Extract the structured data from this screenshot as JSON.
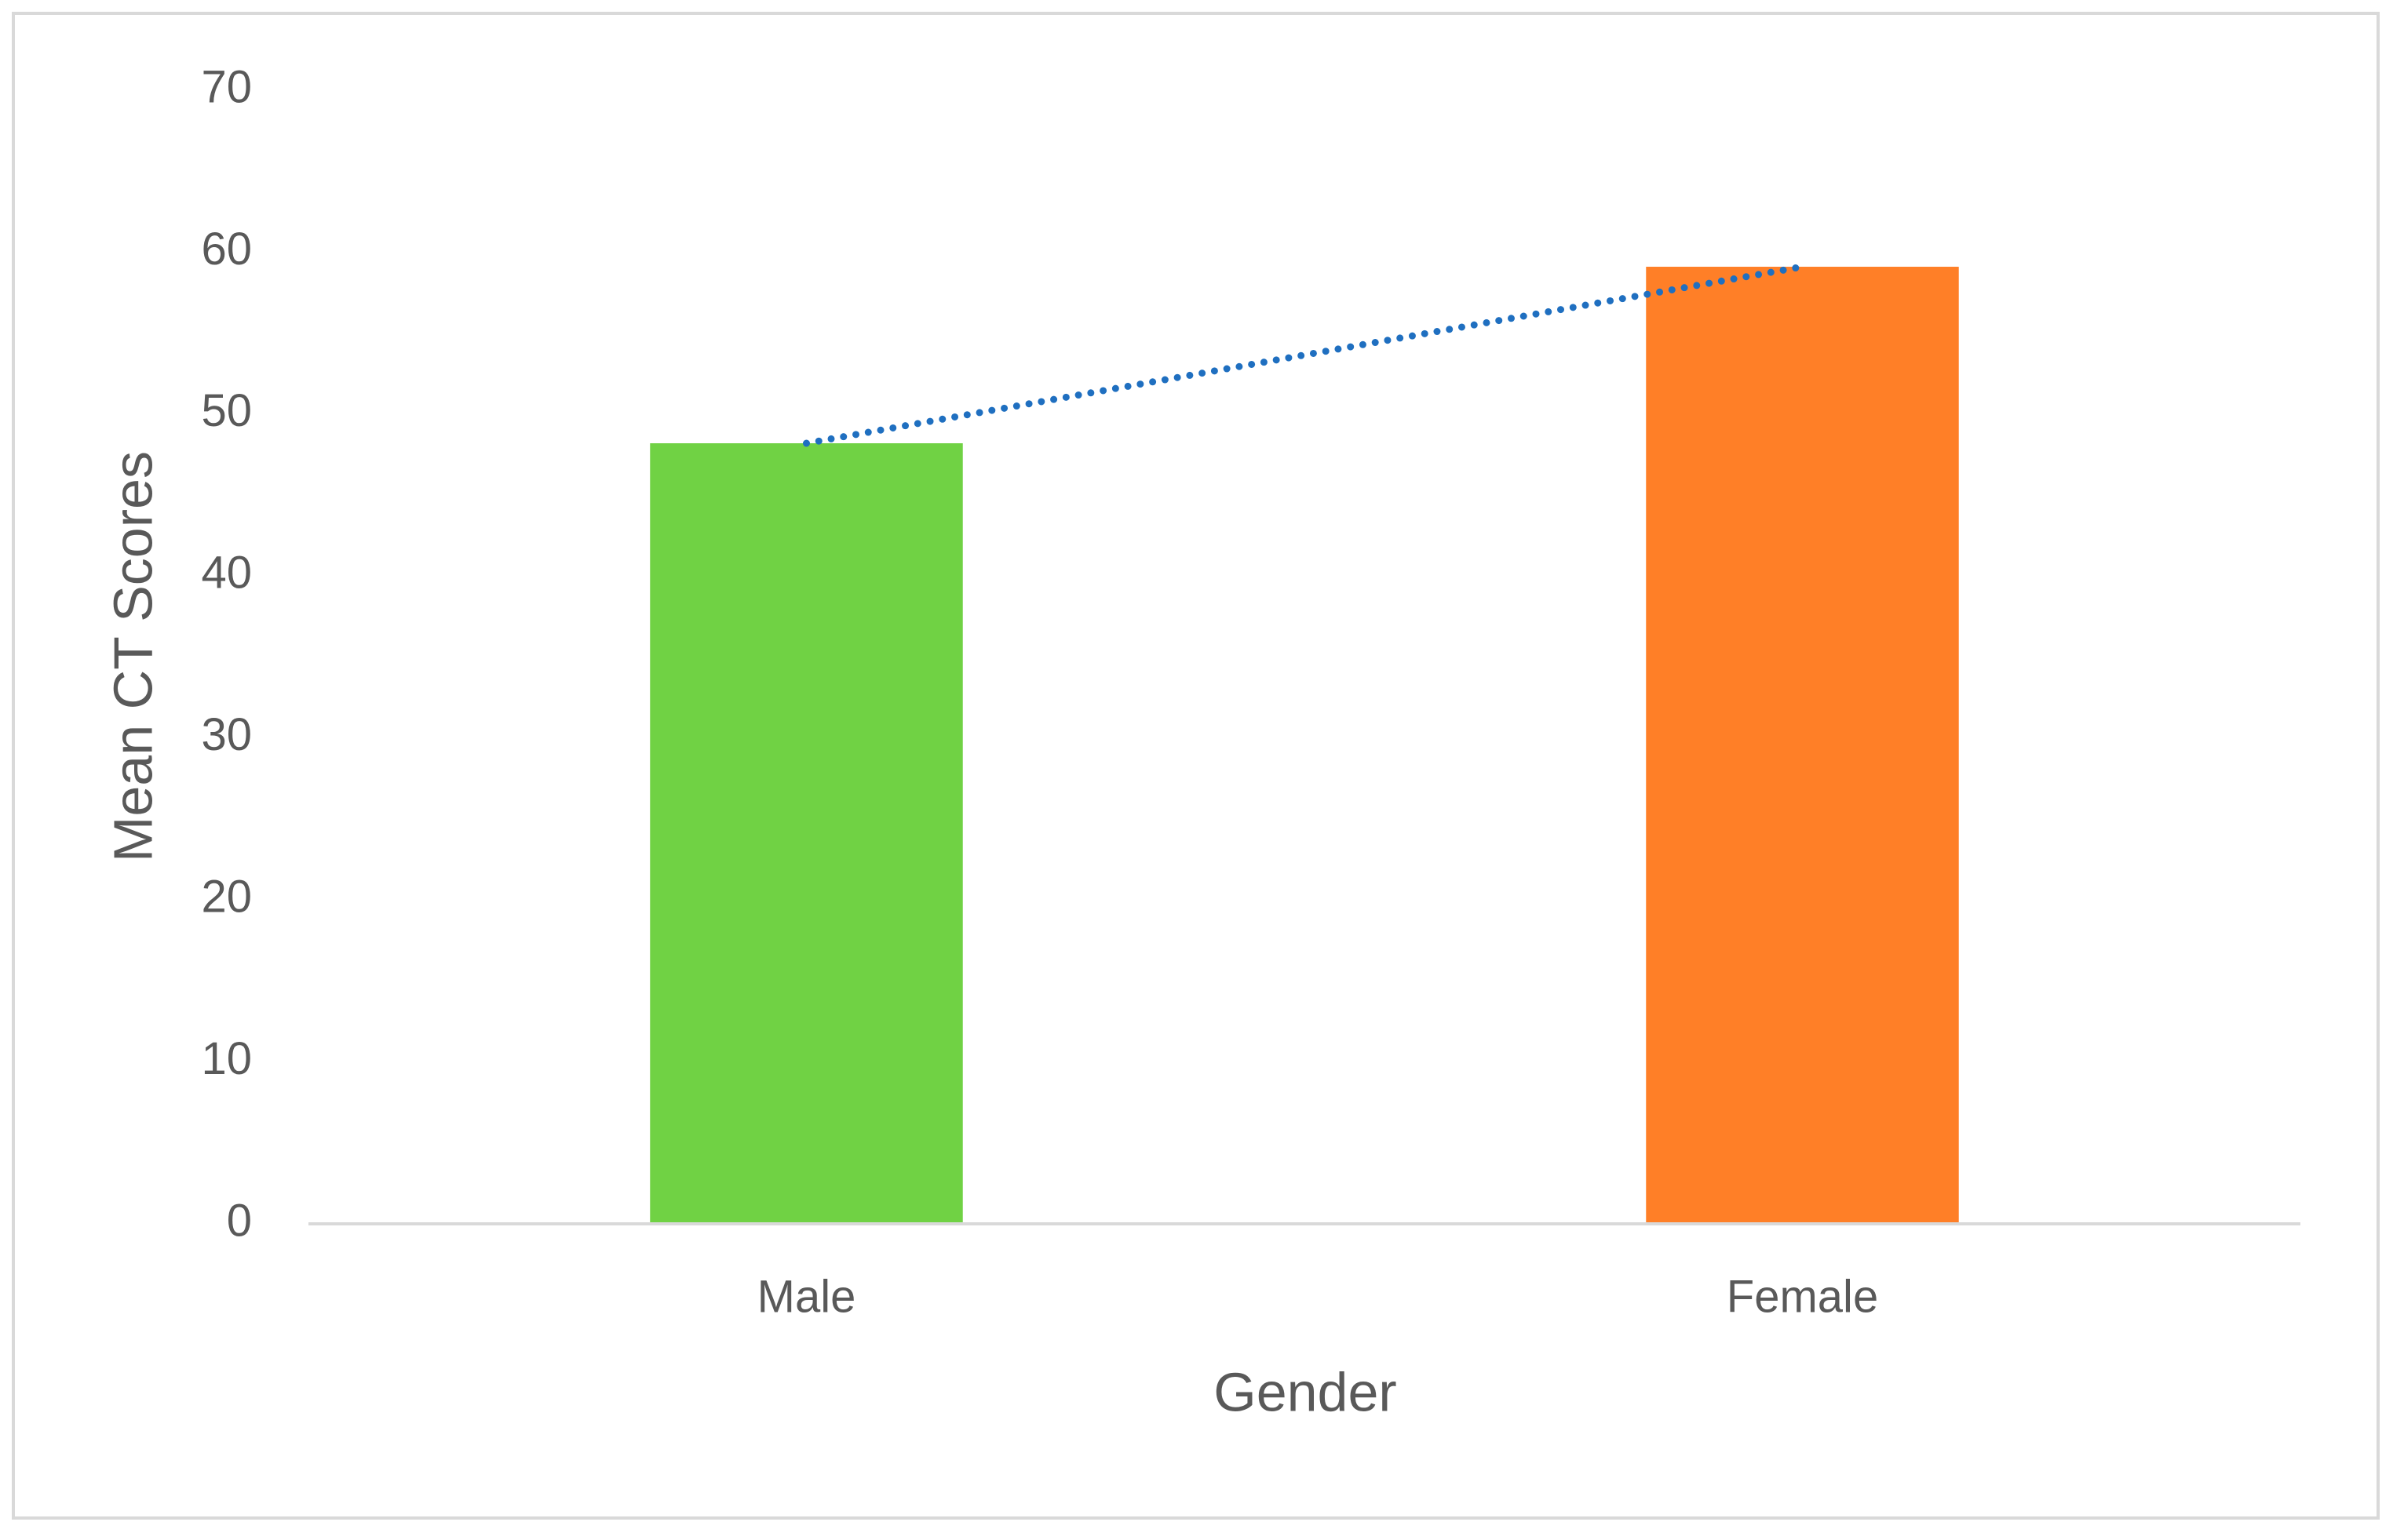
{
  "chart_data": {
    "type": "bar",
    "x_label": "Gender",
    "y_label": "Mean CT Scores",
    "categories": [
      "Male",
      "Female"
    ],
    "values": [
      48.2,
      59.1
    ],
    "colors": [
      "#70d244",
      "#ff7f27"
    ],
    "ylim": [
      0,
      70
    ],
    "yticks": [
      0,
      10,
      20,
      30,
      40,
      50,
      60,
      70
    ],
    "grid": false,
    "trendline": {
      "type": "linear",
      "color": "#1f6fc0",
      "style": "dotted"
    }
  }
}
